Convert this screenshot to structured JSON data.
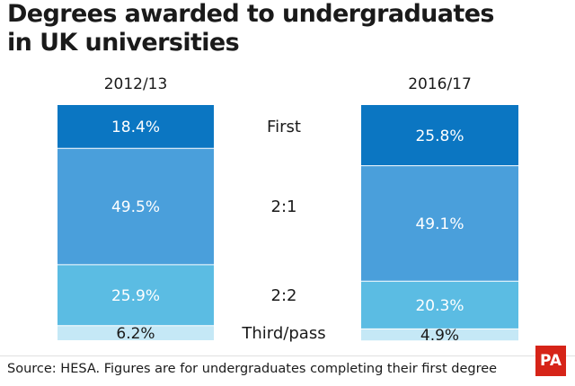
{
  "title_lines": [
    "Degrees awarded to undergraduates",
    "in UK universities"
  ],
  "source": "Source: HESA. Figures are for undergraduates completing their first degree",
  "logo": "PA",
  "colors": {
    "First": "#0b76c2",
    "2:1": "#4a9fdb",
    "2:2": "#5bbce3",
    "Third/pass": "#c5e8f6",
    "text_on_bar": "#ffffff",
    "text_on_light": "#1a1a1a",
    "divider": "#ffffff"
  },
  "chart_data": {
    "type": "bar",
    "stacked": true,
    "percent_stacked": true,
    "categories": [
      "2012/13",
      "2016/17"
    ],
    "segment_order_top_to_bottom": [
      "First",
      "2:1",
      "2:2",
      "Third/pass"
    ],
    "series": [
      {
        "name": "First",
        "values": [
          18.4,
          25.8
        ],
        "labels": [
          "18.4%",
          "25.8%"
        ]
      },
      {
        "name": "2:1",
        "values": [
          49.5,
          49.1
        ],
        "labels": [
          "49.5%",
          "49.1%"
        ]
      },
      {
        "name": "2:2",
        "values": [
          25.9,
          20.3
        ],
        "labels": [
          "25.9%",
          "20.3%"
        ]
      },
      {
        "name": "Third/pass",
        "values": [
          6.2,
          4.9
        ],
        "labels": [
          "6.2%",
          "4.9%"
        ]
      }
    ],
    "ylim": [
      0,
      100
    ],
    "xlabel": "",
    "ylabel": "",
    "legend": "center labels between bars"
  }
}
